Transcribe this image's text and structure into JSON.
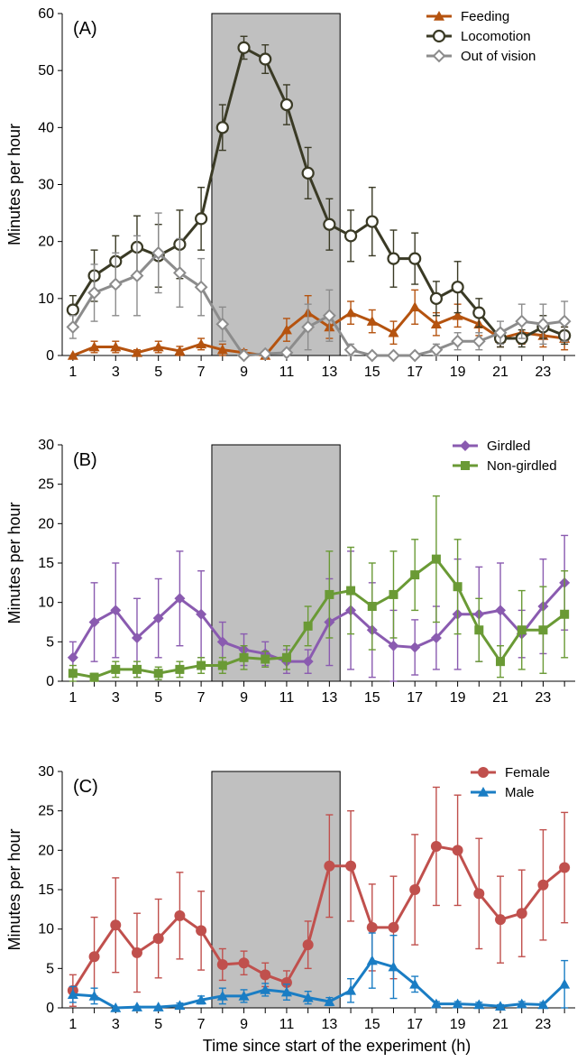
{
  "chart_data": [
    {
      "type": "line",
      "panel_label": "(A)",
      "ylabel": "Minutes per hour",
      "xlabel": "",
      "ylim": [
        0,
        60
      ],
      "yticks": [
        0,
        10,
        20,
        30,
        40,
        50,
        60
      ],
      "xlim": [
        0.5,
        24.5
      ],
      "xticks": [
        1,
        3,
        5,
        7,
        9,
        11,
        13,
        15,
        17,
        19,
        21,
        23
      ],
      "dark_period": [
        7.5,
        13.5
      ],
      "legend_position": "top-right",
      "x": [
        1,
        2,
        3,
        4,
        5,
        6,
        7,
        8,
        9,
        10,
        11,
        12,
        13,
        14,
        15,
        16,
        17,
        18,
        19,
        20,
        21,
        22,
        23,
        24
      ],
      "series": [
        {
          "name": "Feeding",
          "color": "#b5530f",
          "marker": "triangle",
          "values": [
            0,
            1.5,
            1.5,
            0.5,
            1.5,
            0.8,
            2,
            1,
            0.5,
            0,
            4.5,
            7.5,
            5,
            7.5,
            6,
            4,
            8.5,
            5.5,
            7,
            5.5,
            3,
            4,
            3.5,
            3
          ],
          "errors": [
            0,
            1,
            1,
            0.5,
            1,
            0.8,
            1,
            1,
            0.5,
            0,
            2,
            3,
            2,
            2,
            2,
            2,
            3,
            2,
            2,
            2,
            1.5,
            2,
            2,
            2
          ]
        },
        {
          "name": "Locomotion",
          "color": "#3a3a25",
          "marker": "circle-open",
          "values": [
            8,
            14,
            16.5,
            19,
            17.5,
            19.5,
            24,
            40,
            54,
            52,
            44,
            32,
            23,
            21,
            23.5,
            17,
            17,
            10,
            12,
            7.5,
            3,
            3,
            5,
            3.5
          ],
          "errors": [
            2.5,
            4.5,
            4.5,
            5.5,
            5.5,
            6,
            5.5,
            4,
            2,
            2.5,
            3.5,
            4.5,
            4.5,
            4.5,
            6,
            5,
            4.5,
            3,
            4.5,
            2.5,
            1.5,
            1.5,
            2,
            1.5
          ]
        },
        {
          "name": "Out of vision",
          "color": "#8c8c8c",
          "marker": "diamond-open",
          "values": [
            5,
            11,
            12.5,
            14,
            18,
            14.5,
            12,
            5.5,
            0,
            0.3,
            0.5,
            5,
            7,
            1,
            0,
            0,
            0,
            1,
            2.5,
            2.5,
            4,
            6,
            5.5,
            6
          ],
          "errors": [
            2,
            5,
            5.5,
            7,
            7,
            6,
            5,
            3,
            0,
            0.3,
            0.5,
            4,
            4.5,
            1,
            0,
            0,
            0,
            1,
            1.5,
            1.5,
            2,
            3,
            3.5,
            3.5
          ]
        }
      ]
    },
    {
      "type": "line",
      "panel_label": "(B)",
      "ylabel": "Minutes per hour",
      "xlabel": "",
      "ylim": [
        0,
        30
      ],
      "yticks": [
        0,
        5,
        10,
        15,
        20,
        25,
        30
      ],
      "xlim": [
        0.5,
        24.5
      ],
      "xticks": [
        1,
        3,
        5,
        7,
        9,
        11,
        13,
        15,
        17,
        19,
        21,
        23
      ],
      "dark_period": [
        7.5,
        13.5
      ],
      "legend_position": "top-right",
      "x": [
        1,
        2,
        3,
        4,
        5,
        6,
        7,
        8,
        9,
        10,
        11,
        12,
        13,
        14,
        15,
        16,
        17,
        18,
        19,
        20,
        21,
        22,
        23,
        24
      ],
      "series": [
        {
          "name": "Girdled",
          "color": "#8a5bb0",
          "marker": "diamond",
          "values": [
            3,
            7.5,
            9,
            5.5,
            8,
            10.5,
            8.5,
            5,
            4,
            3.5,
            2.5,
            2.5,
            7.5,
            9,
            6.5,
            4.5,
            4.3,
            5.5,
            8.5,
            8.5,
            9,
            6,
            9.5,
            12.5
          ],
          "errors": [
            2,
            5,
            6,
            5,
            5,
            6,
            5.5,
            2.5,
            2,
            1.5,
            1.5,
            1.5,
            5.5,
            7.5,
            6,
            4.5,
            3.5,
            4,
            7,
            6,
            6,
            3,
            6,
            6
          ]
        },
        {
          "name": "Non-girdled",
          "color": "#6a9a35",
          "marker": "square",
          "values": [
            1,
            0.5,
            1.5,
            1.5,
            1,
            1.5,
            2,
            2,
            3,
            2.8,
            3,
            7,
            11,
            11.5,
            9.5,
            11,
            13.5,
            15.5,
            12,
            6.5,
            2.5,
            6.5,
            6.5,
            8.5
          ],
          "errors": [
            1,
            0.5,
            1,
            1,
            0.8,
            1,
            1,
            1,
            1.5,
            1,
            1.5,
            2.5,
            5.5,
            5.5,
            5.5,
            5.5,
            4.5,
            8,
            6,
            4,
            2,
            5,
            5.5,
            5.5
          ]
        }
      ]
    },
    {
      "type": "line",
      "panel_label": "(C)",
      "ylabel": "Minutes per hour",
      "xlabel": "Time since start of the experiment (h)",
      "ylim": [
        0,
        30
      ],
      "yticks": [
        0,
        5,
        10,
        15,
        20,
        25,
        30
      ],
      "xlim": [
        0.5,
        24.5
      ],
      "xticks": [
        1,
        3,
        5,
        7,
        9,
        11,
        13,
        15,
        17,
        19,
        21,
        23
      ],
      "dark_period": [
        7.5,
        13.5
      ],
      "legend_position": "top-right",
      "x": [
        1,
        2,
        3,
        4,
        5,
        6,
        7,
        8,
        9,
        10,
        11,
        12,
        13,
        14,
        15,
        16,
        17,
        18,
        19,
        20,
        21,
        22,
        23,
        24
      ],
      "series": [
        {
          "name": "Female",
          "color": "#c0504d",
          "marker": "circle",
          "values": [
            2.2,
            6.5,
            10.5,
            7,
            8.8,
            11.7,
            9.8,
            5.5,
            5.7,
            4.2,
            3.2,
            8,
            18,
            18,
            10.2,
            10.2,
            15,
            20.5,
            20,
            14.5,
            11.2,
            12,
            15.6,
            17.8
          ],
          "errors": [
            2,
            5,
            6,
            5,
            5,
            5.5,
            5,
            2,
            1.5,
            1.5,
            1.5,
            3,
            6.5,
            7,
            5.5,
            6.5,
            7,
            7.5,
            7,
            7,
            5.5,
            5.5,
            7,
            7
          ]
        },
        {
          "name": "Male",
          "color": "#1a7dc4",
          "marker": "triangle",
          "values": [
            1.7,
            1.5,
            0,
            0.1,
            0.1,
            0.3,
            1,
            1.5,
            1.5,
            2.3,
            2,
            1.3,
            0.8,
            2.2,
            6,
            5.2,
            3,
            0.5,
            0.5,
            0.4,
            0.2,
            0.5,
            0.4,
            3
          ],
          "errors": [
            1,
            1,
            0,
            0.1,
            0.1,
            0.3,
            0.5,
            1,
            0.8,
            0.8,
            1,
            0.8,
            0.5,
            1.5,
            3.5,
            4,
            1,
            0.3,
            0.3,
            0.3,
            0.2,
            0.3,
            0.3,
            3
          ]
        }
      ]
    }
  ]
}
